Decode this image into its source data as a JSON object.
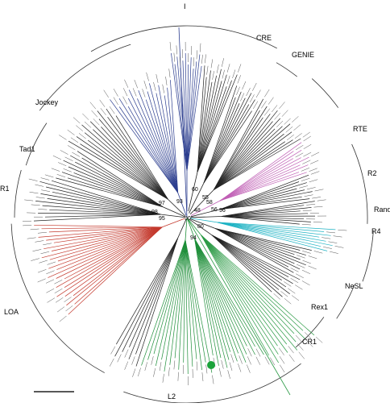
{
  "figure": {
    "clades": [
      {
        "id": "I",
        "label": "I"
      },
      {
        "id": "CRE",
        "label": "CRE"
      },
      {
        "id": "GENIE",
        "label": "GENIE"
      },
      {
        "id": "RTE",
        "label": "RTE"
      },
      {
        "id": "R2",
        "label": "R2"
      },
      {
        "id": "Randi",
        "label": "RandI"
      },
      {
        "id": "R4",
        "label": "R4"
      },
      {
        "id": "NeSL",
        "label": "NeSL"
      },
      {
        "id": "Rex1",
        "label": "Rex1"
      },
      {
        "id": "CR1",
        "label": "CR1"
      },
      {
        "id": "L2",
        "label": "L2"
      },
      {
        "id": "LOA",
        "label": "LOA"
      },
      {
        "id": "R1",
        "label": "R1"
      },
      {
        "id": "Tad1",
        "label": "Tad1"
      },
      {
        "id": "Jockey",
        "label": "Jockey"
      }
    ],
    "bootstrap": [
      "97",
      "93",
      "60",
      "55",
      "58",
      "96",
      "48",
      "56",
      "90",
      "95",
      "80",
      "94",
      "98"
    ],
    "colors": {
      "branch": "#222222",
      "I_clade": "#2c3e8f",
      "RTE_clade": "#c05fb5",
      "R4_clade": "#1fb3c4",
      "LOA_clade": "#c43a2e",
      "L2_clade": "#1f8f3a",
      "CR1_clade": "#2b9a45",
      "marker": "#1aa33a"
    },
    "marker_icon": "green-dot-icon"
  }
}
